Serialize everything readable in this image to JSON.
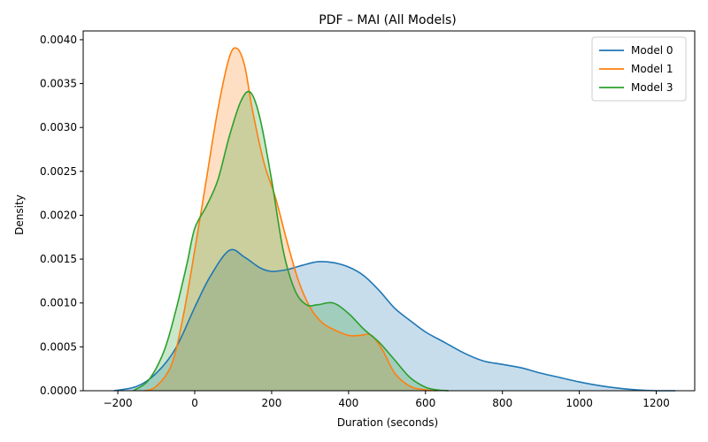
{
  "chart_data": {
    "type": "area",
    "title": "PDF – MAI (All Models)",
    "xlabel": "Duration (seconds)",
    "ylabel": "Density",
    "xlim": [
      -290,
      1300
    ],
    "ylim": [
      0,
      0.0041
    ],
    "xticks": [
      -200,
      0,
      200,
      400,
      600,
      800,
      1000,
      1200
    ],
    "yticks": [
      0.0,
      0.0005,
      0.001,
      0.0015,
      0.002,
      0.0025,
      0.003,
      0.0035,
      0.004
    ],
    "ytick_labels": [
      "0.0000",
      "0.0005",
      "0.0010",
      "0.0015",
      "0.0020",
      "0.0025",
      "0.0030",
      "0.0035",
      "0.0040"
    ],
    "grid": false,
    "legend": "top-right",
    "series": [
      {
        "name": "Model 0",
        "color": "#1f77b4",
        "x": [
          -210,
          -150,
          -100,
          -50,
          0,
          40,
          90,
          130,
          170,
          200,
          240,
          280,
          320,
          360,
          400,
          440,
          480,
          520,
          560,
          600,
          650,
          700,
          750,
          800,
          850,
          900,
          950,
          1000,
          1050,
          1100,
          1150,
          1200,
          1250
        ],
        "y": [
          0.0,
          5e-05,
          0.0002,
          0.00048,
          0.00095,
          0.0013,
          0.0016,
          0.00152,
          0.0014,
          0.00136,
          0.00138,
          0.00143,
          0.00147,
          0.00146,
          0.00141,
          0.00131,
          0.00114,
          0.00094,
          0.0008,
          0.00067,
          0.00055,
          0.00043,
          0.00034,
          0.0003,
          0.00026,
          0.0002,
          0.00015,
          0.0001,
          6e-05,
          3e-05,
          1e-05,
          0.0,
          0.0
        ]
      },
      {
        "name": "Model 1",
        "color": "#ff7f0e",
        "x": [
          -130,
          -100,
          -60,
          -30,
          0,
          30,
          60,
          90,
          110,
          130,
          150,
          180,
          210,
          240,
          270,
          300,
          330,
          360,
          400,
          430,
          460,
          490,
          520,
          560,
          600,
          630
        ],
        "y": [
          0.0,
          5e-05,
          0.0003,
          0.00085,
          0.0016,
          0.0024,
          0.0032,
          0.0038,
          0.0039,
          0.0037,
          0.0032,
          0.0026,
          0.0022,
          0.0017,
          0.00125,
          0.00095,
          0.00078,
          0.0007,
          0.00063,
          0.00063,
          0.00063,
          0.00045,
          0.0002,
          5e-05,
          1e-05,
          0.0
        ]
      },
      {
        "name": "Model 3",
        "color": "#2ca02c",
        "x": [
          -160,
          -120,
          -80,
          -50,
          -20,
          0,
          30,
          60,
          90,
          120,
          145,
          170,
          200,
          230,
          260,
          290,
          320,
          360,
          400,
          440,
          480,
          520,
          560,
          600,
          630,
          660
        ],
        "y": [
          0.0,
          0.00012,
          0.00045,
          0.0009,
          0.00145,
          0.00185,
          0.0021,
          0.0024,
          0.0029,
          0.0033,
          0.0034,
          0.0031,
          0.0024,
          0.0016,
          0.00115,
          0.00098,
          0.00098,
          0.001,
          0.00088,
          0.0007,
          0.00055,
          0.00035,
          0.00015,
          4e-05,
          1e-05,
          0.0
        ]
      }
    ]
  }
}
